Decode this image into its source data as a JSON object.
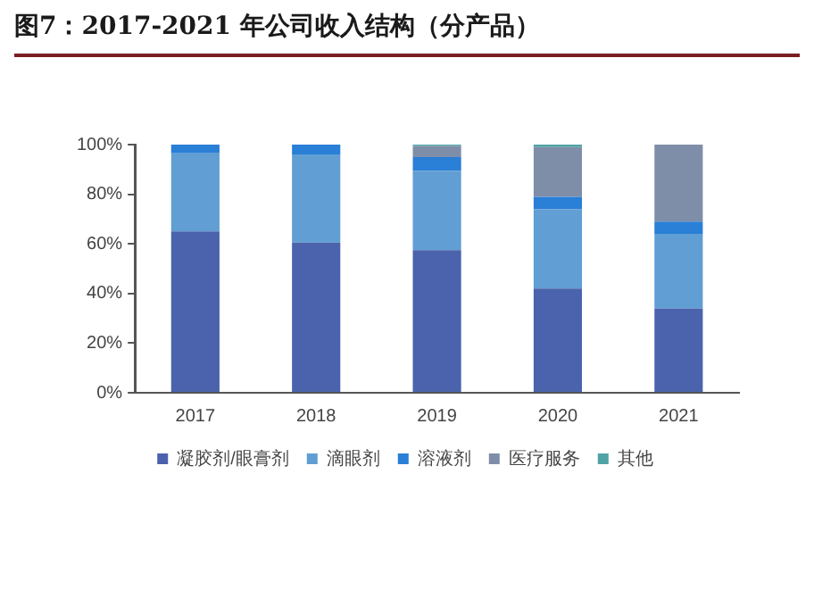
{
  "chart_data": {
    "type": "bar",
    "title": "图7：2017-2021 年公司收入结构（分产品）",
    "stacked": true,
    "categories": [
      "2017",
      "2018",
      "2019",
      "2020",
      "2021"
    ],
    "series": [
      {
        "name": "凝胶剂/眼膏剂",
        "color": "#4a63ac",
        "values": [
          65,
          60.5,
          57.5,
          42,
          34
        ]
      },
      {
        "name": "滴眼剂",
        "color": "#609ed3",
        "values": [
          31.5,
          35.5,
          32,
          32,
          30
        ]
      },
      {
        "name": "溶液剂",
        "color": "#2a7fd6",
        "values": [
          3.5,
          4,
          5.5,
          5,
          5
        ]
      },
      {
        "name": "医疗服务",
        "color": "#7f8ea8",
        "values": [
          0,
          0,
          4.5,
          20,
          31
        ]
      },
      {
        "name": "其他",
        "color": "#4fa3a5",
        "values": [
          0,
          0,
          0.5,
          1,
          0
        ]
      }
    ],
    "ylim": [
      0,
      100
    ],
    "yticks": [
      {
        "value": 0,
        "label": "0%"
      },
      {
        "value": 20,
        "label": "20%"
      },
      {
        "value": 40,
        "label": "40%"
      },
      {
        "value": 60,
        "label": "60%"
      },
      {
        "value": 80,
        "label": "80%"
      },
      {
        "value": 100,
        "label": "100%"
      }
    ],
    "grid": false,
    "legend": "bottom"
  }
}
